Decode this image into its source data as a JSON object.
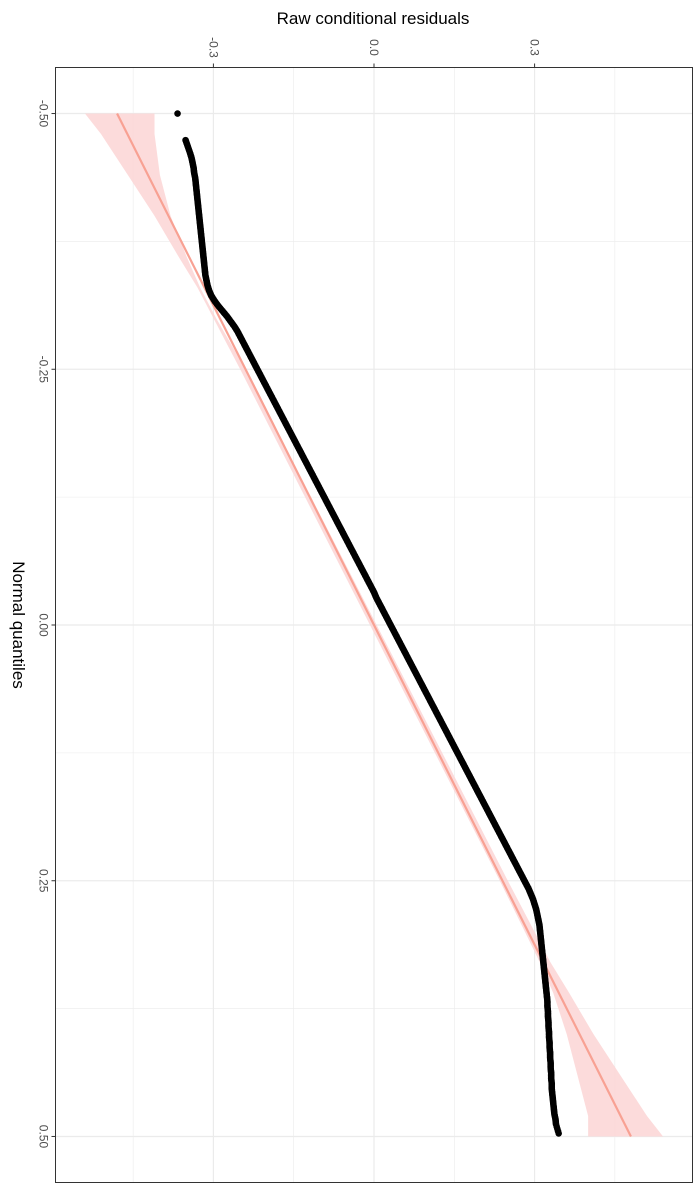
{
  "chart_data": {
    "type": "scatter",
    "title": "",
    "xlabel": "Normal quantiles",
    "ylabel": "Raw conditional residuals",
    "xlim": [
      -0.545,
      0.545
    ],
    "ylim": [
      -0.595,
      0.595
    ],
    "x_ticks": [
      -0.5,
      -0.25,
      0.0,
      0.25,
      0.5
    ],
    "x_tick_labels": [
      "-0.50",
      "-0.25",
      "0.00",
      "0.25",
      "0.50"
    ],
    "y_ticks": [
      -0.3,
      0.0,
      0.3
    ],
    "y_tick_labels": [
      "-0.3",
      "0.0",
      "0.3"
    ],
    "orientation": "rotated 90 degrees clockwise",
    "grid": true,
    "legend": "none",
    "colors": {
      "points": "#000000",
      "reference_line": "#f8a193",
      "confidence_band": "#fbd5d5",
      "grid": "#ebebeb",
      "panel_border": "#333333"
    },
    "reference_line": {
      "x": [
        -0.5,
        0.5
      ],
      "y": [
        -0.48,
        0.48
      ]
    },
    "confidence_band": {
      "x": [
        -0.5,
        -0.48,
        -0.44,
        -0.4,
        -0.36,
        -0.33,
        -0.3,
        -0.25,
        0.25,
        0.3,
        0.33,
        0.36,
        0.4,
        0.44,
        0.48,
        0.5
      ],
      "lower": [
        -0.54,
        -0.51,
        -0.46,
        -0.41,
        -0.365,
        -0.33,
        -0.3,
        -0.25,
        0.235,
        0.282,
        0.31,
        0.335,
        0.36,
        0.38,
        0.4,
        0.4
      ],
      "upper": [
        -0.41,
        -0.41,
        -0.4,
        -0.38,
        -0.35,
        -0.325,
        -0.295,
        -0.24,
        0.25,
        0.3,
        0.33,
        0.365,
        0.41,
        0.46,
        0.51,
        0.54
      ]
    },
    "series": [
      {
        "x": [
          -0.5,
          -0.474,
          -0.468,
          -0.462,
          -0.457,
          -0.452,
          -0.447,
          -0.442,
          -0.437,
          -0.432,
          -0.427,
          -0.422,
          -0.417,
          -0.412,
          -0.407,
          -0.402,
          -0.397,
          -0.392,
          -0.387,
          -0.382,
          -0.377,
          -0.372,
          -0.367,
          -0.362,
          -0.357,
          -0.352,
          -0.347,
          -0.342,
          -0.337,
          -0.332,
          -0.327,
          -0.322,
          -0.317,
          -0.312,
          -0.307,
          -0.302,
          -0.297,
          -0.292,
          -0.287,
          -0.282,
          -0.277,
          -0.272,
          -0.267,
          -0.262,
          -0.257,
          -0.252,
          -0.247,
          -0.242,
          -0.237,
          -0.232,
          -0.227,
          -0.222,
          -0.217,
          -0.212,
          -0.207,
          -0.202,
          -0.197,
          -0.192,
          -0.187,
          -0.182,
          -0.177,
          -0.172,
          -0.167,
          -0.162,
          -0.157,
          -0.152,
          -0.147,
          -0.142,
          -0.137,
          -0.132,
          -0.127,
          -0.122,
          -0.117,
          -0.112,
          -0.107,
          -0.102,
          -0.097,
          -0.092,
          -0.087,
          -0.082,
          -0.077,
          -0.072,
          -0.067,
          -0.062,
          -0.057,
          -0.052,
          -0.047,
          -0.042,
          -0.037,
          -0.032,
          -0.027,
          -0.022,
          -0.017,
          -0.012,
          -0.007,
          -0.002,
          0.003,
          0.008,
          0.013,
          0.018,
          0.023,
          0.028,
          0.033,
          0.038,
          0.043,
          0.048,
          0.053,
          0.058,
          0.063,
          0.068,
          0.073,
          0.078,
          0.083,
          0.088,
          0.093,
          0.098,
          0.103,
          0.108,
          0.113,
          0.118,
          0.123,
          0.128,
          0.133,
          0.138,
          0.143,
          0.148,
          0.153,
          0.158,
          0.163,
          0.168,
          0.173,
          0.178,
          0.183,
          0.188,
          0.193,
          0.198,
          0.203,
          0.208,
          0.213,
          0.218,
          0.223,
          0.228,
          0.233,
          0.238,
          0.243,
          0.248,
          0.253,
          0.258,
          0.263,
          0.268,
          0.273,
          0.278,
          0.283,
          0.288,
          0.293,
          0.298,
          0.303,
          0.308,
          0.313,
          0.318,
          0.323,
          0.328,
          0.333,
          0.338,
          0.343,
          0.348,
          0.353,
          0.358,
          0.363,
          0.368,
          0.373,
          0.378,
          0.383,
          0.388,
          0.393,
          0.398,
          0.403,
          0.408,
          0.413,
          0.418,
          0.423,
          0.428,
          0.433,
          0.438,
          0.443,
          0.448,
          0.453,
          0.458,
          0.463,
          0.468,
          0.473,
          0.478,
          0.483,
          0.488,
          0.497
        ],
        "y": [
          -0.367,
          -0.352,
          -0.348,
          -0.344,
          -0.341,
          -0.339,
          -0.337,
          -0.336,
          -0.334,
          -0.333,
          -0.332,
          -0.331,
          -0.33,
          -0.329,
          -0.328,
          -0.327,
          -0.326,
          -0.325,
          -0.324,
          -0.323,
          -0.322,
          -0.321,
          -0.32,
          -0.319,
          -0.318,
          -0.317,
          -0.316,
          -0.315,
          -0.313,
          -0.311,
          -0.308,
          -0.304,
          -0.298,
          -0.291,
          -0.283,
          -0.275,
          -0.268,
          -0.261,
          -0.255,
          -0.25,
          -0.245,
          -0.24,
          -0.235,
          -0.23,
          -0.225,
          -0.22,
          -0.215,
          -0.21,
          -0.205,
          -0.2,
          -0.195,
          -0.19,
          -0.185,
          -0.18,
          -0.175,
          -0.17,
          -0.165,
          -0.16,
          -0.155,
          -0.15,
          -0.145,
          -0.14,
          -0.135,
          -0.13,
          -0.125,
          -0.12,
          -0.115,
          -0.11,
          -0.105,
          -0.1,
          -0.095,
          -0.09,
          -0.085,
          -0.08,
          -0.075,
          -0.07,
          -0.065,
          -0.06,
          -0.055,
          -0.05,
          -0.045,
          -0.04,
          -0.035,
          -0.03,
          -0.025,
          -0.02,
          -0.015,
          -0.01,
          -0.005,
          0.0,
          0.004,
          0.009,
          0.014,
          0.019,
          0.024,
          0.029,
          0.034,
          0.039,
          0.044,
          0.049,
          0.054,
          0.059,
          0.064,
          0.069,
          0.074,
          0.079,
          0.084,
          0.089,
          0.094,
          0.099,
          0.104,
          0.109,
          0.114,
          0.119,
          0.124,
          0.129,
          0.134,
          0.139,
          0.144,
          0.149,
          0.154,
          0.159,
          0.164,
          0.169,
          0.174,
          0.179,
          0.184,
          0.189,
          0.194,
          0.199,
          0.204,
          0.209,
          0.214,
          0.219,
          0.224,
          0.229,
          0.234,
          0.239,
          0.244,
          0.249,
          0.254,
          0.259,
          0.264,
          0.269,
          0.274,
          0.279,
          0.284,
          0.289,
          0.293,
          0.297,
          0.3,
          0.303,
          0.305,
          0.307,
          0.309,
          0.31,
          0.311,
          0.312,
          0.313,
          0.314,
          0.315,
          0.316,
          0.317,
          0.318,
          0.319,
          0.32,
          0.321,
          0.322,
          0.323,
          0.324,
          0.324,
          0.325,
          0.325,
          0.326,
          0.326,
          0.327,
          0.327,
          0.328,
          0.328,
          0.329,
          0.329,
          0.33,
          0.33,
          0.331,
          0.331,
          0.332,
          0.332,
          0.333,
          0.334,
          0.335,
          0.336,
          0.337,
          0.339,
          0.34,
          0.345
        ]
      }
    ]
  }
}
